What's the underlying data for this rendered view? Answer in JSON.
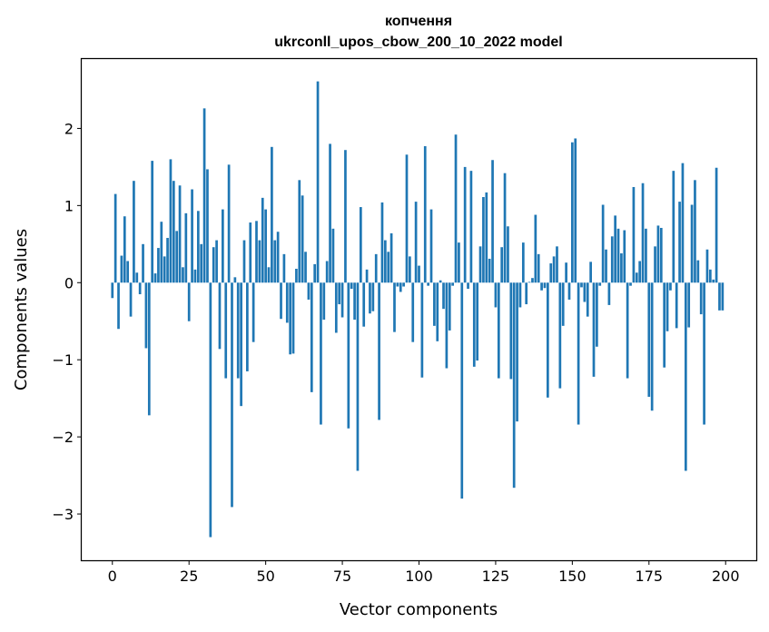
{
  "chart_data": {
    "type": "bar",
    "title": "копчення",
    "subtitle": "ukrconll_upos_cbow_200_10_2022 model",
    "xlabel": "Vector components",
    "ylabel": "Components values",
    "xlim": [
      -10,
      210
    ],
    "ylim": [
      -3.6,
      2.9
    ],
    "xticks": [
      0,
      25,
      50,
      75,
      100,
      125,
      150,
      175,
      200
    ],
    "yticks": [
      -3,
      -2,
      -1,
      0,
      1,
      2
    ],
    "ytick_labels": [
      "−3",
      "−2",
      "−1",
      "0",
      "1",
      "2"
    ],
    "grid": false,
    "bar_color": "#1f77b4",
    "x": [
      0,
      1,
      2,
      3,
      4,
      5,
      6,
      7,
      8,
      9,
      10,
      11,
      12,
      13,
      14,
      15,
      16,
      17,
      18,
      19,
      20,
      21,
      22,
      23,
      24,
      25,
      26,
      27,
      28,
      29,
      30,
      31,
      32,
      33,
      34,
      35,
      36,
      37,
      38,
      39,
      40,
      41,
      42,
      43,
      44,
      45,
      46,
      47,
      48,
      49,
      50,
      51,
      52,
      53,
      54,
      55,
      56,
      57,
      58,
      59,
      60,
      61,
      62,
      63,
      64,
      65,
      66,
      67,
      68,
      69,
      70,
      71,
      72,
      73,
      74,
      75,
      76,
      77,
      78,
      79,
      80,
      81,
      82,
      83,
      84,
      85,
      86,
      87,
      88,
      89,
      90,
      91,
      92,
      93,
      94,
      95,
      96,
      97,
      98,
      99,
      100,
      101,
      102,
      103,
      104,
      105,
      106,
      107,
      108,
      109,
      110,
      111,
      112,
      113,
      114,
      115,
      116,
      117,
      118,
      119,
      120,
      121,
      122,
      123,
      124,
      125,
      126,
      127,
      128,
      129,
      130,
      131,
      132,
      133,
      134,
      135,
      136,
      137,
      138,
      139,
      140,
      141,
      142,
      143,
      144,
      145,
      146,
      147,
      148,
      149,
      150,
      151,
      152,
      153,
      154,
      155,
      156,
      157,
      158,
      159,
      160,
      161,
      162,
      163,
      164,
      165,
      166,
      167,
      168,
      169,
      170,
      171,
      172,
      173,
      174,
      175,
      176,
      177,
      178,
      179,
      180,
      181,
      182,
      183,
      184,
      185,
      186,
      187,
      188,
      189,
      190,
      191,
      192,
      193,
      194,
      195,
      196,
      197,
      198,
      199
    ],
    "values": [
      -0.2,
      1.15,
      -0.6,
      0.35,
      0.86,
      0.28,
      -0.44,
      1.32,
      0.13,
      -0.15,
      0.5,
      -0.85,
      -1.72,
      1.58,
      0.12,
      0.45,
      0.79,
      0.34,
      0.58,
      1.6,
      1.32,
      0.67,
      1.26,
      0.2,
      0.9,
      -0.5,
      1.21,
      0.17,
      0.93,
      0.5,
      2.26,
      1.47,
      -3.3,
      0.46,
      0.55,
      -0.86,
      0.95,
      -1.24,
      1.53,
      -2.91,
      0.07,
      -1.24,
      -1.6,
      0.55,
      -1.15,
      0.78,
      -0.77,
      0.8,
      0.55,
      1.1,
      0.95,
      0.2,
      1.76,
      0.55,
      0.66,
      -0.47,
      0.37,
      -0.52,
      -0.93,
      -0.92,
      0.18,
      1.33,
      1.13,
      0.4,
      -0.22,
      -1.42,
      0.24,
      2.61,
      -1.84,
      -0.48,
      0.28,
      1.8,
      0.7,
      -0.65,
      -0.28,
      -0.45,
      1.72,
      -1.89,
      -0.08,
      -0.48,
      -2.44,
      0.98,
      -0.57,
      0.17,
      -0.4,
      -0.37,
      0.37,
      -1.78,
      1.04,
      0.55,
      0.4,
      0.64,
      -0.64,
      -0.05,
      -0.12,
      -0.05,
      1.66,
      0.34,
      -0.77,
      1.05,
      0.22,
      -1.23,
      1.77,
      -0.04,
      0.95,
      -0.56,
      -0.76,
      0.03,
      -0.34,
      -1.11,
      -0.62,
      -0.04,
      1.92,
      0.52,
      -2.8,
      1.5,
      -0.08,
      1.45,
      -1.09,
      -1.01,
      0.47,
      1.11,
      1.17,
      0.31,
      1.59,
      -0.32,
      -1.24,
      0.46,
      1.42,
      0.73,
      -1.25,
      -2.66,
      -1.8,
      -0.32,
      0.52,
      -0.28,
      0.01,
      0.06,
      0.88,
      0.37,
      -0.1,
      -0.07,
      -1.49,
      0.25,
      0.34,
      0.47,
      -1.37,
      -0.56,
      0.26,
      -0.22,
      1.82,
      1.87,
      -1.84,
      -0.06,
      -0.25,
      -0.44,
      0.27,
      -1.22,
      -0.83,
      -0.04,
      1.01,
      0.43,
      -0.29,
      0.6,
      0.87,
      0.7,
      0.38,
      0.68,
      -1.24,
      -0.04,
      1.24,
      0.13,
      0.28,
      1.29,
      0.7,
      -1.48,
      -1.66,
      0.47,
      0.74,
      0.71,
      -1.1,
      -0.63,
      -0.1,
      1.45,
      -0.59,
      1.05,
      1.55,
      -2.44,
      -0.58,
      1.01,
      1.33,
      0.29,
      -0.41,
      -1.84,
      0.43,
      0.17,
      0.04,
      1.49,
      -0.36,
      -0.36
    ]
  }
}
